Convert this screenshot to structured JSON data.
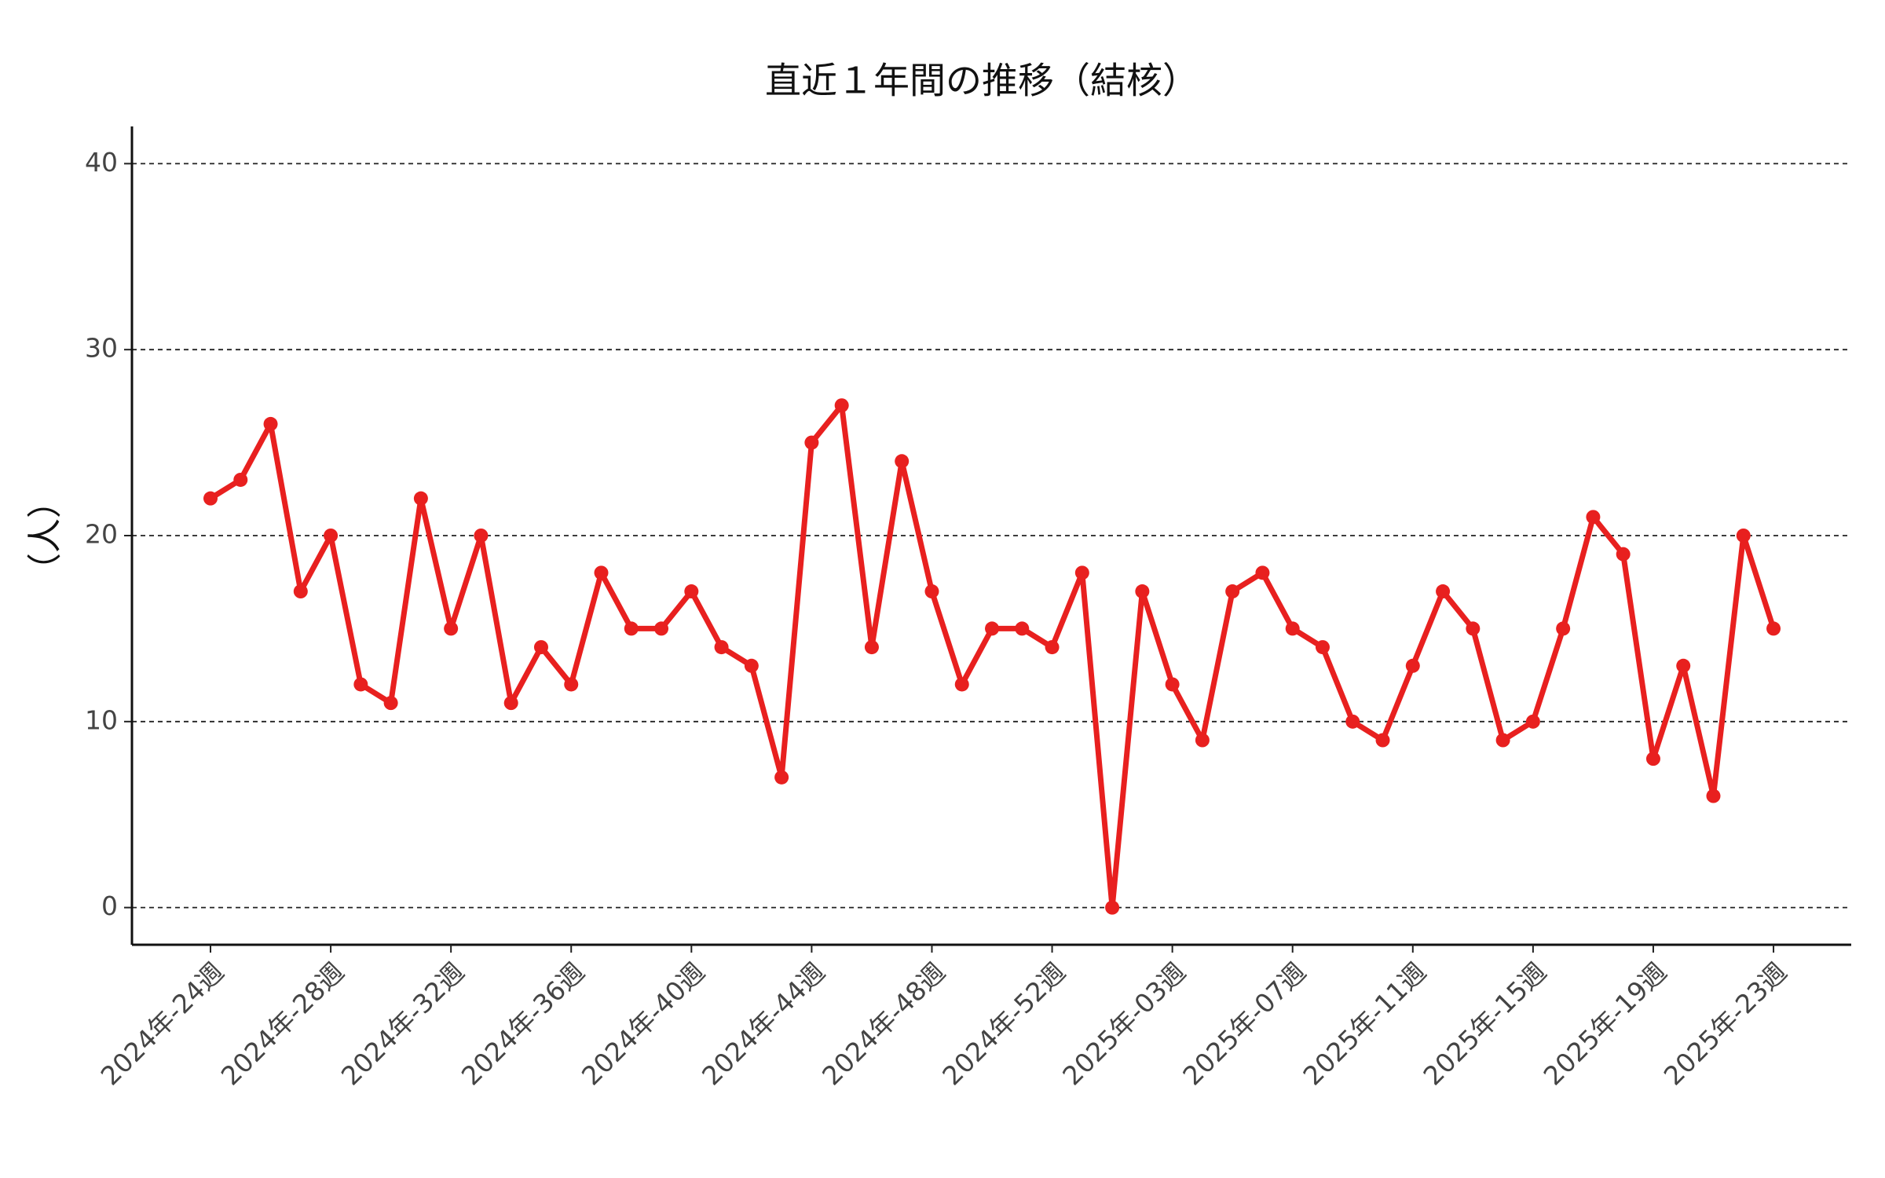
{
  "chart_data": {
    "type": "line",
    "title": "直近１年間の推移（結核）",
    "ylabel": "（人）",
    "categories": [
      "2024年-24週",
      null,
      null,
      null,
      "2024年-28週",
      null,
      null,
      null,
      "2024年-32週",
      null,
      null,
      null,
      "2024年-36週",
      null,
      null,
      null,
      "2024年-40週",
      null,
      null,
      null,
      "2024年-44週",
      null,
      null,
      null,
      "2024年-48週",
      null,
      null,
      null,
      "2024年-52週",
      null,
      null,
      null,
      "2025年-03週",
      null,
      null,
      null,
      "2025年-07週",
      null,
      null,
      null,
      "2025年-11週",
      null,
      null,
      null,
      "2025年-15週",
      null,
      null,
      null,
      "2025年-19週",
      null,
      null,
      null,
      "2025年-23週"
    ],
    "values": [
      22,
      23,
      26,
      17,
      20,
      12,
      11,
      22,
      15,
      20,
      11,
      14,
      12,
      18,
      15,
      15,
      17,
      14,
      13,
      7,
      25,
      27,
      14,
      24,
      17,
      12,
      15,
      15,
      14,
      18,
      0,
      17,
      12,
      9,
      17,
      18,
      15,
      14,
      10,
      9,
      13,
      17,
      15,
      9,
      10,
      15,
      21,
      19,
      8,
      13,
      6,
      20,
      15
    ],
    "color": "#e8201f",
    "ylim": [
      -2,
      42
    ],
    "yticks": [
      0,
      10,
      20,
      30,
      40
    ],
    "grid": true
  }
}
